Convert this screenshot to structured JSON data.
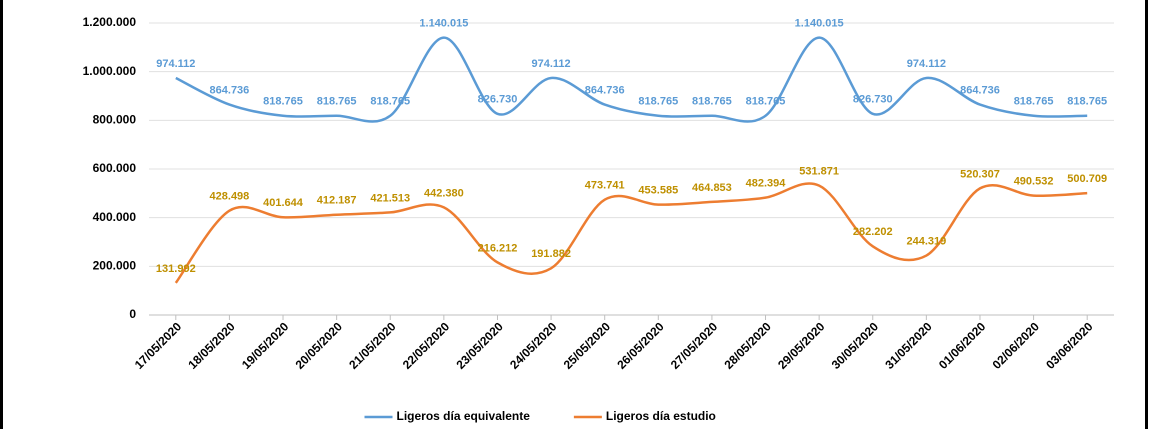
{
  "chart_data": {
    "type": "line",
    "smooth": true,
    "grid": true,
    "legend": "bottom",
    "categories": [
      "17/05/2020",
      "18/05/2020",
      "19/05/2020",
      "20/05/2020",
      "21/05/2020",
      "22/05/2020",
      "23/05/2020",
      "24/05/2020",
      "25/05/2020",
      "26/05/2020",
      "27/05/2020",
      "28/05/2020",
      "29/05/2020",
      "30/05/2020",
      "31/05/2020",
      "01/06/2020",
      "02/06/2020",
      "03/06/2020"
    ],
    "ylim": [
      0,
      1200000
    ],
    "yticks": [
      0,
      {
        "value": 200000,
        "label": "200.000"
      },
      {
        "value": 400000,
        "label": "400.000"
      },
      {
        "value": 600000,
        "label": "600.000"
      },
      {
        "value": 800000,
        "label": "800.000"
      },
      {
        "value": 1000000,
        "label": "1.000.000"
      },
      {
        "value": 1200000,
        "label": "1.200.000"
      }
    ],
    "series": [
      {
        "name": "Ligeros día equivalente",
        "color": "#5b9bd5",
        "label_color": "#5b9bd5",
        "values": [
          974112,
          864736,
          818765,
          818765,
          818765,
          1140015,
          826730,
          974112,
          864736,
          818765,
          818765,
          818765,
          1140015,
          826730,
          974112,
          864736,
          818765,
          818765
        ],
        "value_labels": [
          "974.112",
          "864.736",
          "818.765",
          "818.765",
          "818.765",
          "1.140.015",
          "826.730",
          "974.112",
          "864.736",
          "818.765",
          "818.765",
          "818.765",
          "1.140.015",
          "826.730",
          "974.112",
          "864.736",
          "818.765",
          "818.765"
        ]
      },
      {
        "name": "Ligeros día estudio",
        "color": "#ed7d31",
        "label_color": "#bf9000",
        "values": [
          131992,
          428498,
          401644,
          412187,
          421513,
          442380,
          216212,
          191882,
          473741,
          453585,
          464853,
          482394,
          531871,
          282202,
          244319,
          520307,
          490532,
          500709
        ],
        "value_labels": [
          "131.992",
          "428.498",
          "401.644",
          "412.187",
          "421.513",
          "442.380",
          "216.212",
          "191.882",
          "473.741",
          "453.585",
          "464.853",
          "482.394",
          "531.871",
          "282.202",
          "244.319",
          "520.307",
          "490.532",
          "500.709"
        ]
      }
    ]
  }
}
